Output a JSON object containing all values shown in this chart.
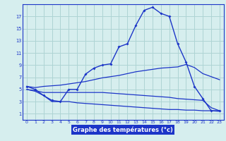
{
  "xlabel": "Graphe des températures (°c)",
  "x": [
    0,
    1,
    2,
    3,
    4,
    5,
    6,
    7,
    8,
    9,
    10,
    11,
    12,
    13,
    14,
    15,
    16,
    17,
    18,
    19,
    20,
    21,
    22,
    23
  ],
  "line1": [
    5.5,
    5.0,
    4.0,
    3.2,
    3.0,
    5.0,
    5.0,
    7.5,
    8.5,
    9.0,
    9.2,
    12.0,
    12.5,
    15.5,
    18.0,
    18.5,
    17.5,
    17.0,
    12.5,
    9.5,
    5.5,
    3.5,
    1.5,
    1.5
  ],
  "line2": [
    5.5,
    5.3,
    5.5,
    5.6,
    5.7,
    5.9,
    6.1,
    6.3,
    6.6,
    6.9,
    7.1,
    7.3,
    7.6,
    7.9,
    8.1,
    8.3,
    8.5,
    8.6,
    8.7,
    9.1,
    8.6,
    7.6,
    7.1,
    6.6
  ],
  "line3": [
    5.0,
    4.8,
    4.5,
    4.5,
    4.5,
    4.5,
    4.5,
    4.5,
    4.5,
    4.5,
    4.4,
    4.3,
    4.2,
    4.1,
    4.0,
    3.9,
    3.8,
    3.7,
    3.5,
    3.4,
    3.3,
    3.2,
    2.0,
    1.5
  ],
  "line4": [
    5.0,
    4.7,
    4.0,
    3.0,
    3.0,
    3.0,
    2.8,
    2.7,
    2.6,
    2.5,
    2.4,
    2.3,
    2.2,
    2.1,
    2.0,
    1.9,
    1.8,
    1.7,
    1.7,
    1.6,
    1.6,
    1.5,
    1.5,
    1.4
  ],
  "line_color": "#1c35c8",
  "bg_color": "#d6eeee",
  "grid_color": "#aed4d4",
  "ylim": [
    0,
    19
  ],
  "yticks": [
    1,
    3,
    5,
    7,
    9,
    11,
    13,
    15,
    17
  ],
  "xticks": [
    0,
    1,
    2,
    3,
    4,
    5,
    6,
    7,
    8,
    9,
    10,
    11,
    12,
    13,
    14,
    15,
    16,
    17,
    18,
    19,
    20,
    21,
    22,
    23
  ],
  "xlabel_bg": "#1c35c8",
  "xlabel_fg": "white"
}
